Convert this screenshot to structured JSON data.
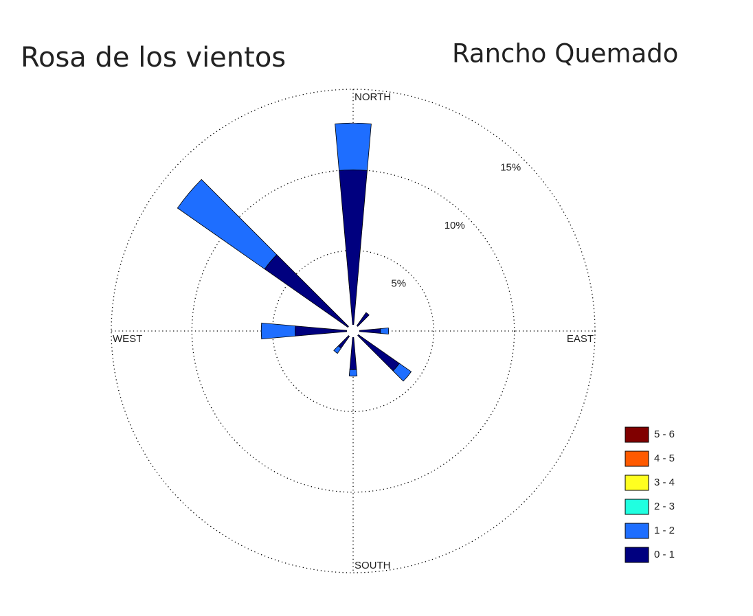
{
  "chart_data": {
    "type": "windrose",
    "title": "Rosa de los vientos",
    "subtitle": "Rancho Quemado",
    "direction_labels": [
      "NORTH",
      "EAST",
      "SOUTH",
      "WEST"
    ],
    "x": [
      0,
      40,
      90,
      130,
      180,
      220,
      270,
      310
    ],
    "ylim": [
      0,
      15
    ],
    "yticks": [
      {
        "value": 5,
        "label": "5%"
      },
      {
        "value": 10,
        "label": "10%"
      },
      {
        "value": 15,
        "label": "15%"
      }
    ],
    "series": [
      {
        "name": "0 - 1",
        "color": "#00007f",
        "values": [
          10.0,
          1.4,
          1.7,
          3.5,
          2.4,
          1.3,
          3.6,
          6.7
        ]
      },
      {
        "name": "1 - 2",
        "color": "#1e6eff",
        "values": [
          2.9,
          0,
          0.5,
          0.9,
          0.4,
          0.4,
          2.1,
          6.6
        ]
      },
      {
        "name": "2 - 3",
        "color": "#20ffe0",
        "values": [
          0,
          0,
          0,
          0,
          0,
          0,
          0,
          0
        ]
      },
      {
        "name": "3 - 4",
        "color": "#ffff20",
        "values": [
          0,
          0,
          0,
          0,
          0,
          0,
          0,
          0
        ]
      },
      {
        "name": "4 - 5",
        "color": "#ff5a00",
        "values": [
          0,
          0,
          0,
          0,
          0,
          0,
          0,
          0
        ]
      },
      {
        "name": "5 - 6",
        "color": "#800000",
        "values": [
          0,
          0,
          0,
          0,
          0,
          0,
          0,
          0
        ]
      }
    ],
    "grid": true
  }
}
